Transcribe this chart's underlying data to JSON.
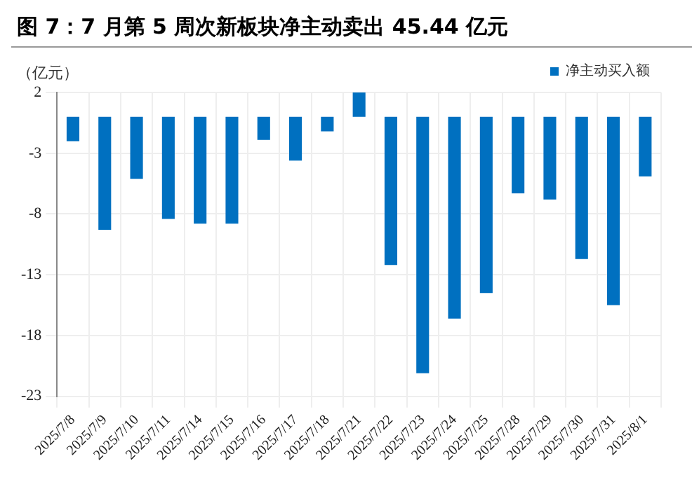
{
  "chart_data": {
    "type": "bar",
    "title": "图 7：7 月第 5 周次新板块净主动卖出 45.44 亿元",
    "ylabel": "（亿元）",
    "categories": [
      "2025/7/8",
      "2025/7/9",
      "2025/7/10",
      "2025/7/11",
      "2025/7/14",
      "2025/7/15",
      "2025/7/16",
      "2025/7/17",
      "2025/7/18",
      "2025/7/21",
      "2025/7/22",
      "2025/7/23",
      "2025/7/24",
      "2025/7/25",
      "2025/7/28",
      "2025/7/29",
      "2025/7/30",
      "2025/7/31",
      "2025/8/1"
    ],
    "series": [
      {
        "name": "净主动买入额",
        "color": "#0070c0",
        "values": [
          -2.0,
          -9.3,
          -5.1,
          -8.4,
          -8.8,
          -8.8,
          -1.9,
          -3.6,
          -1.2,
          2.0,
          -12.2,
          -21.1,
          -16.6,
          -14.5,
          -6.3,
          -6.8,
          -11.7,
          -15.5,
          -4.9
        ]
      }
    ],
    "ylim": [
      -23,
      2
    ],
    "yticks": [
      2,
      -3,
      -8,
      -13,
      -18,
      -23
    ],
    "grid": true,
    "legend": "top"
  }
}
